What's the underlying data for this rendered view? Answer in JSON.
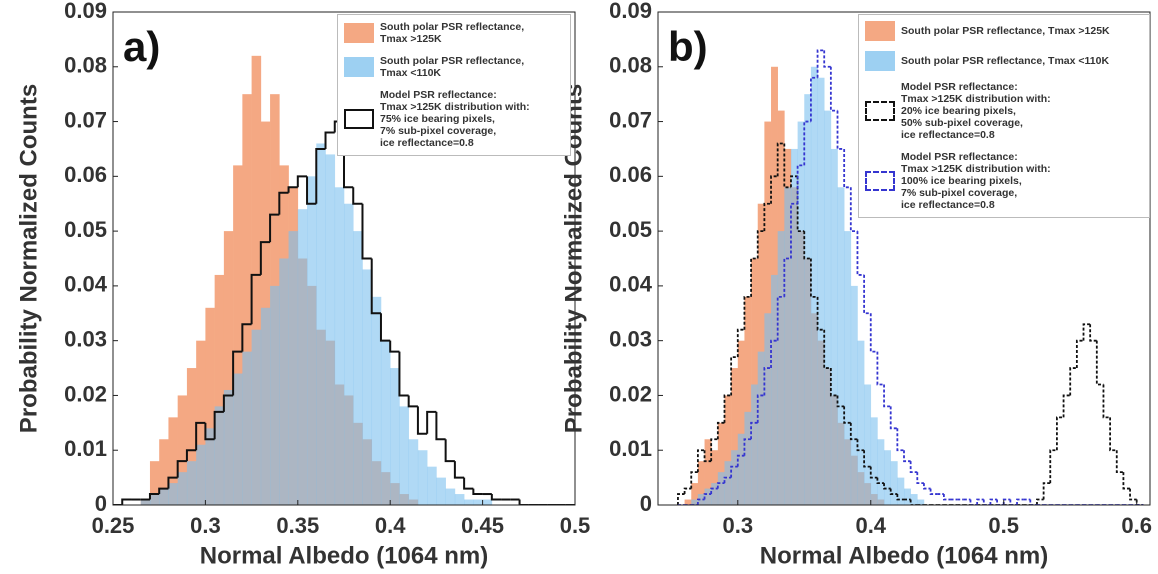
{
  "chart_data": [
    {
      "type": "histogram",
      "panel_label": "a)",
      "xlabel": "Normal Albedo (1064 nm)",
      "ylabel": "Probability Normalized Counts",
      "xlim": [
        0.25,
        0.5
      ],
      "xticks": [
        0.25,
        0.3,
        0.35,
        0.4,
        0.45,
        0.5
      ],
      "ylim": [
        0,
        0.09
      ],
      "yticks": [
        0,
        0.01,
        0.02,
        0.03,
        0.04,
        0.05,
        0.06,
        0.07,
        0.08,
        0.09
      ],
      "grid": false,
      "legend": "upper right",
      "bins": [
        0.25,
        0.255,
        0.26,
        0.265,
        0.27,
        0.275,
        0.28,
        0.285,
        0.29,
        0.295,
        0.3,
        0.305,
        0.31,
        0.315,
        0.32,
        0.325,
        0.33,
        0.335,
        0.34,
        0.345,
        0.35,
        0.355,
        0.36,
        0.365,
        0.37,
        0.375,
        0.38,
        0.385,
        0.39,
        0.395,
        0.4,
        0.405,
        0.41,
        0.415,
        0.42,
        0.425,
        0.43,
        0.435,
        0.44,
        0.445,
        0.45,
        0.455,
        0.46,
        0.465,
        0.47,
        0.475,
        0.48,
        0.485,
        0.49,
        0.495,
        0.5
      ],
      "series": [
        {
          "name": "South polar PSR reflectance,\n Tmax >125K",
          "color": "#f4a883",
          "histtype": "stepfilled",
          "alpha": 1,
          "values": [
            0,
            0,
            0,
            0.001,
            0.008,
            0.012,
            0.016,
            0.02,
            0.025,
            0.03,
            0.036,
            0.042,
            0.05,
            0.062,
            0.075,
            0.082,
            0.07,
            0.075,
            0.062,
            0.058,
            0.045,
            0.04,
            0.032,
            0.03,
            0.022,
            0.02,
            0.015,
            0.012,
            0.008,
            0.006,
            0.004,
            0.002,
            0.001,
            0,
            0,
            0,
            0,
            0,
            0,
            0,
            0,
            0,
            0,
            0,
            0,
            0,
            0,
            0,
            0,
            0
          ]
        },
        {
          "name": "South polar PSR reflectance,\nTmax <110K",
          "color": "#7cc0ee",
          "histtype": "stepfilled",
          "alpha": 0.6,
          "values": [
            0,
            0,
            0,
            0.001,
            0.002,
            0.003,
            0.004,
            0.006,
            0.008,
            0.011,
            0.014,
            0.018,
            0.021,
            0.024,
            0.028,
            0.032,
            0.036,
            0.04,
            0.045,
            0.05,
            0.054,
            0.06,
            0.066,
            0.064,
            0.058,
            0.055,
            0.05,
            0.043,
            0.038,
            0.03,
            0.025,
            0.018,
            0.012,
            0.01,
            0.007,
            0.005,
            0.003,
            0.002,
            0.001,
            0.001,
            0.001,
            0,
            0,
            0,
            0,
            0,
            0,
            0,
            0,
            0
          ]
        },
        {
          "name": "Model PSR reflectance:\nTmax >125K distribution with:\n75% ice bearing pixels,\n7% sub-pixel coverage,\nice reflectance=0.8",
          "color": "#111111",
          "histtype": "step",
          "linestyle": "solid",
          "values": [
            0,
            0.001,
            0.001,
            0.001,
            0.002,
            0.003,
            0.005,
            0.008,
            0.01,
            0.015,
            0.012,
            0.017,
            0.02,
            0.028,
            0.033,
            0.042,
            0.048,
            0.053,
            0.057,
            0.058,
            0.06,
            0.055,
            0.065,
            0.068,
            0.07,
            0.058,
            0.055,
            0.045,
            0.035,
            0.03,
            0.028,
            0.02,
            0.018,
            0.013,
            0.017,
            0.012,
            0.008,
            0.005,
            0.003,
            0.002,
            0.002,
            0.001,
            0.001,
            0.001,
            0,
            0,
            0,
            0,
            0,
            0
          ]
        }
      ]
    },
    {
      "type": "histogram",
      "panel_label": "b)",
      "xlabel": "Normal Albedo (1064 nm)",
      "ylabel": "Probability Normalized Counts",
      "xlim": [
        0.24,
        0.61
      ],
      "xticks": [
        0.3,
        0.4,
        0.5,
        0.6
      ],
      "ylim": [
        0,
        0.09
      ],
      "yticks": [
        0,
        0.01,
        0.02,
        0.03,
        0.04,
        0.05,
        0.06,
        0.07,
        0.08,
        0.09
      ],
      "grid": false,
      "legend": "upper right",
      "bins": [
        0.255,
        0.26,
        0.265,
        0.27,
        0.275,
        0.28,
        0.285,
        0.29,
        0.295,
        0.3,
        0.305,
        0.31,
        0.315,
        0.32,
        0.325,
        0.33,
        0.335,
        0.34,
        0.345,
        0.35,
        0.355,
        0.36,
        0.365,
        0.37,
        0.375,
        0.38,
        0.385,
        0.39,
        0.395,
        0.4,
        0.405,
        0.41,
        0.415,
        0.42,
        0.425,
        0.43,
        0.435,
        0.44,
        0.445,
        0.45,
        0.455,
        0.46,
        0.465,
        0.47,
        0.475,
        0.48,
        0.485,
        0.49,
        0.495,
        0.5,
        0.505,
        0.51,
        0.515,
        0.52,
        0.525,
        0.53,
        0.535,
        0.54,
        0.545,
        0.55,
        0.555,
        0.56,
        0.565,
        0.57,
        0.575,
        0.58,
        0.585,
        0.59,
        0.595,
        0.6,
        0.605
      ],
      "series": [
        {
          "name": "South polar PSR reflectance, Tmax >125K",
          "color": "#f4a883",
          "histtype": "stepfilled",
          "alpha": 1,
          "values": [
            0,
            0.001,
            0.004,
            0.008,
            0.012,
            0.01,
            0.015,
            0.02,
            0.025,
            0.03,
            0.038,
            0.045,
            0.055,
            0.07,
            0.08,
            0.072,
            0.065,
            0.058,
            0.05,
            0.045,
            0.035,
            0.03,
            0.025,
            0.02,
            0.015,
            0.012,
            0.009,
            0.006,
            0.004,
            0.002,
            0.001,
            0,
            0,
            0,
            0,
            0,
            0,
            0,
            0,
            0,
            0,
            0,
            0,
            0,
            0,
            0,
            0,
            0,
            0,
            0,
            0,
            0,
            0,
            0,
            0,
            0,
            0,
            0,
            0,
            0,
            0,
            0,
            0,
            0,
            0,
            0,
            0,
            0,
            0,
            0
          ]
        },
        {
          "name": "South polar PSR reflectance, Tmax <110K",
          "color": "#7cc0ee",
          "histtype": "stepfilled",
          "alpha": 0.6,
          "values": [
            0,
            0,
            0.001,
            0.002,
            0.003,
            0.004,
            0.006,
            0.008,
            0.01,
            0.013,
            0.017,
            0.022,
            0.028,
            0.035,
            0.042,
            0.05,
            0.058,
            0.065,
            0.07,
            0.075,
            0.08,
            0.078,
            0.072,
            0.065,
            0.058,
            0.05,
            0.04,
            0.03,
            0.022,
            0.016,
            0.012,
            0.01,
            0.008,
            0.005,
            0.003,
            0.002,
            0.001,
            0,
            0,
            0,
            0,
            0,
            0,
            0,
            0,
            0,
            0,
            0,
            0,
            0,
            0,
            0,
            0,
            0,
            0,
            0,
            0,
            0,
            0,
            0,
            0,
            0,
            0,
            0,
            0,
            0,
            0,
            0,
            0,
            0
          ]
        },
        {
          "name": "Model PSR reflectance:\nTmax >125K distribution with:\n20% ice bearing pixels,\n50% sub-pixel coverage,\nice reflectance=0.8",
          "color": "#111111",
          "histtype": "step",
          "linestyle": "dashed",
          "values": [
            0.002,
            0.003,
            0.006,
            0.01,
            0.008,
            0.012,
            0.015,
            0.02,
            0.027,
            0.032,
            0.038,
            0.045,
            0.05,
            0.055,
            0.06,
            0.066,
            0.058,
            0.06,
            0.05,
            0.045,
            0.038,
            0.032,
            0.025,
            0.02,
            0.018,
            0.015,
            0.012,
            0.01,
            0.007,
            0.005,
            0.004,
            0.003,
            0.002,
            0.001,
            0.001,
            0,
            0,
            0,
            0,
            0,
            0,
            0,
            0,
            0,
            0,
            0,
            0,
            0,
            0,
            0,
            0,
            0,
            0,
            0,
            0.001,
            0.004,
            0.01,
            0.016,
            0.02,
            0.025,
            0.03,
            0.033,
            0.03,
            0.022,
            0.016,
            0.01,
            0.006,
            0.003,
            0.001,
            0
          ]
        },
        {
          "name": "Model PSR reflectance:\nTmax >125K distribution with:\n100% ice bearing pixels,\n7% sub-pixel coverage,\nice reflectance=0.8",
          "color": "#3535d0",
          "histtype": "step",
          "linestyle": "dashed",
          "values": [
            0,
            0,
            0,
            0.001,
            0.002,
            0.003,
            0.004,
            0.005,
            0.007,
            0.009,
            0.012,
            0.015,
            0.02,
            0.025,
            0.03,
            0.038,
            0.045,
            0.055,
            0.062,
            0.07,
            0.078,
            0.083,
            0.08,
            0.072,
            0.065,
            0.058,
            0.05,
            0.042,
            0.035,
            0.028,
            0.022,
            0.018,
            0.014,
            0.01,
            0.008,
            0.006,
            0.004,
            0.003,
            0.002,
            0.002,
            0.001,
            0.001,
            0.001,
            0.001,
            0,
            0.001,
            0,
            0.001,
            0,
            0.001,
            0,
            0.001,
            0.001,
            0,
            0,
            0,
            0,
            0,
            0,
            0,
            0,
            0,
            0,
            0,
            0,
            0,
            0,
            0,
            0,
            0
          ]
        }
      ]
    }
  ]
}
